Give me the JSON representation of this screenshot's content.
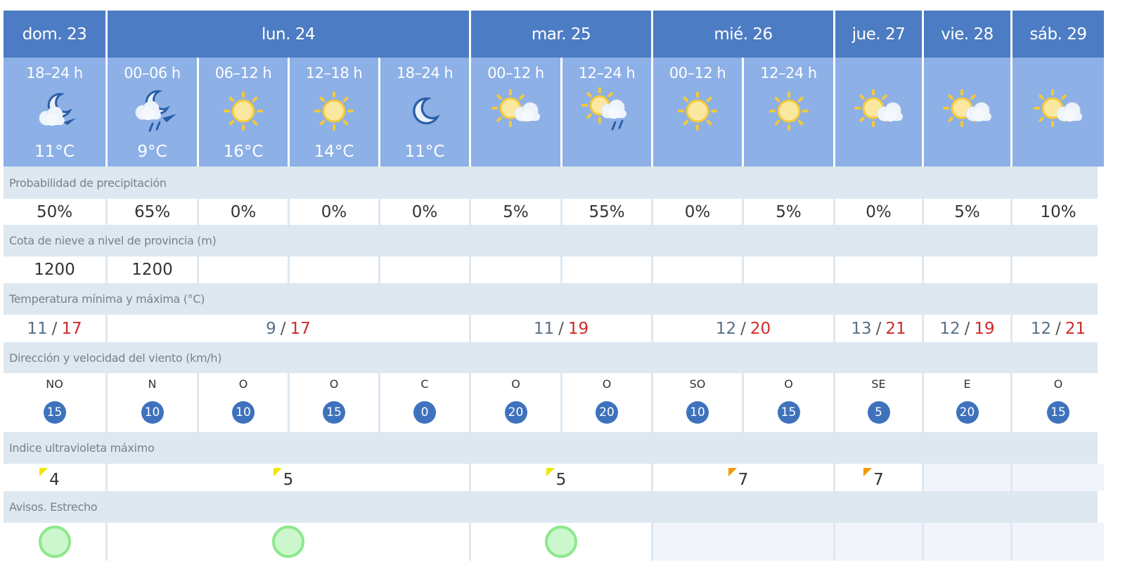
{
  "days": [
    {
      "label": "dom. 23",
      "span": 1,
      "tmin": "11",
      "tmax": "17",
      "uv": "4",
      "uv_color": "#f0e600",
      "aviso": true
    },
    {
      "label": "lun. 24",
      "span": 4,
      "tmin": "9",
      "tmax": "17",
      "uv": "5",
      "uv_color": "#f0e600",
      "aviso": true
    },
    {
      "label": "mar. 25",
      "span": 2,
      "tmin": "11",
      "tmax": "19",
      "uv": "5",
      "uv_color": "#f0e600",
      "aviso": true
    },
    {
      "label": "mié. 26",
      "span": 2,
      "tmin": "12",
      "tmax": "20",
      "uv": "7",
      "uv_color": "#f09a00",
      "aviso": false
    },
    {
      "label": "jue. 27",
      "span": 1,
      "tmin": "13",
      "tmax": "21",
      "uv": "7",
      "uv_color": "#f09a00",
      "aviso": false
    },
    {
      "label": "vie. 28",
      "span": 1,
      "tmin": "12",
      "tmax": "19",
      "uv": null,
      "aviso": false
    },
    {
      "label": "sáb. 29",
      "span": 1,
      "tmin": "12",
      "tmax": "21",
      "uv": null,
      "aviso": false
    }
  ],
  "periods": [
    {
      "label": "18–24 h",
      "icon": "cloud-moon",
      "temp": "11°C",
      "precip": "50%",
      "snow": "1200",
      "wind_dir": "NO",
      "wind_speed": "15"
    },
    {
      "label": "00–06 h",
      "icon": "cloud-moon-rain",
      "temp": "9°C",
      "precip": "65%",
      "snow": "1200",
      "wind_dir": "N",
      "wind_speed": "10"
    },
    {
      "label": "06–12 h",
      "icon": "sun",
      "temp": "16°C",
      "precip": "0%",
      "snow": "",
      "wind_dir": "O",
      "wind_speed": "10"
    },
    {
      "label": "12–18 h",
      "icon": "sun",
      "temp": "14°C",
      "precip": "0%",
      "snow": "",
      "wind_dir": "O",
      "wind_speed": "15"
    },
    {
      "label": "18–24 h",
      "icon": "moon",
      "temp": "11°C",
      "precip": "0%",
      "snow": "",
      "wind_dir": "C",
      "wind_speed": "0"
    },
    {
      "label": "00–12 h",
      "icon": "sun-cloud",
      "temp": "",
      "precip": "5%",
      "snow": "",
      "wind_dir": "O",
      "wind_speed": "20"
    },
    {
      "label": "12–24 h",
      "icon": "sun-cloud-rain",
      "temp": "",
      "precip": "55%",
      "snow": "",
      "wind_dir": "O",
      "wind_speed": "20"
    },
    {
      "label": "00–12 h",
      "icon": "sun",
      "temp": "",
      "precip": "0%",
      "snow": "",
      "wind_dir": "SO",
      "wind_speed": "10"
    },
    {
      "label": "12–24 h",
      "icon": "sun",
      "temp": "",
      "precip": "5%",
      "snow": "",
      "wind_dir": "O",
      "wind_speed": "15"
    },
    {
      "label": "",
      "icon": "sun-cloud",
      "temp": "",
      "precip": "0%",
      "snow": "",
      "wind_dir": "SE",
      "wind_speed": "5"
    },
    {
      "label": "",
      "icon": "sun-cloud",
      "temp": "",
      "precip": "5%",
      "snow": "",
      "wind_dir": "E",
      "wind_speed": "20"
    },
    {
      "label": "",
      "icon": "sun-cloud",
      "temp": "",
      "precip": "10%",
      "snow": "",
      "wind_dir": "O",
      "wind_speed": "15"
    }
  ],
  "labels": {
    "precip": "Probabilidad de precipitación",
    "snow": "Cota de nieve a nivel de provincia (m)",
    "temp": "Temperatura mínima y máxima (°C)",
    "wind": "Dirección y velocidad del viento (km/h)",
    "uv": "Indice ultravioleta máximo",
    "avisos": "Avisos. Estrecho"
  },
  "colors": {
    "header": "#4c7cc3",
    "period": "#8db0e6",
    "wind_badge": "#3e72bd",
    "tmax": "#d02a2a",
    "aviso_green": "#8de88d"
  }
}
